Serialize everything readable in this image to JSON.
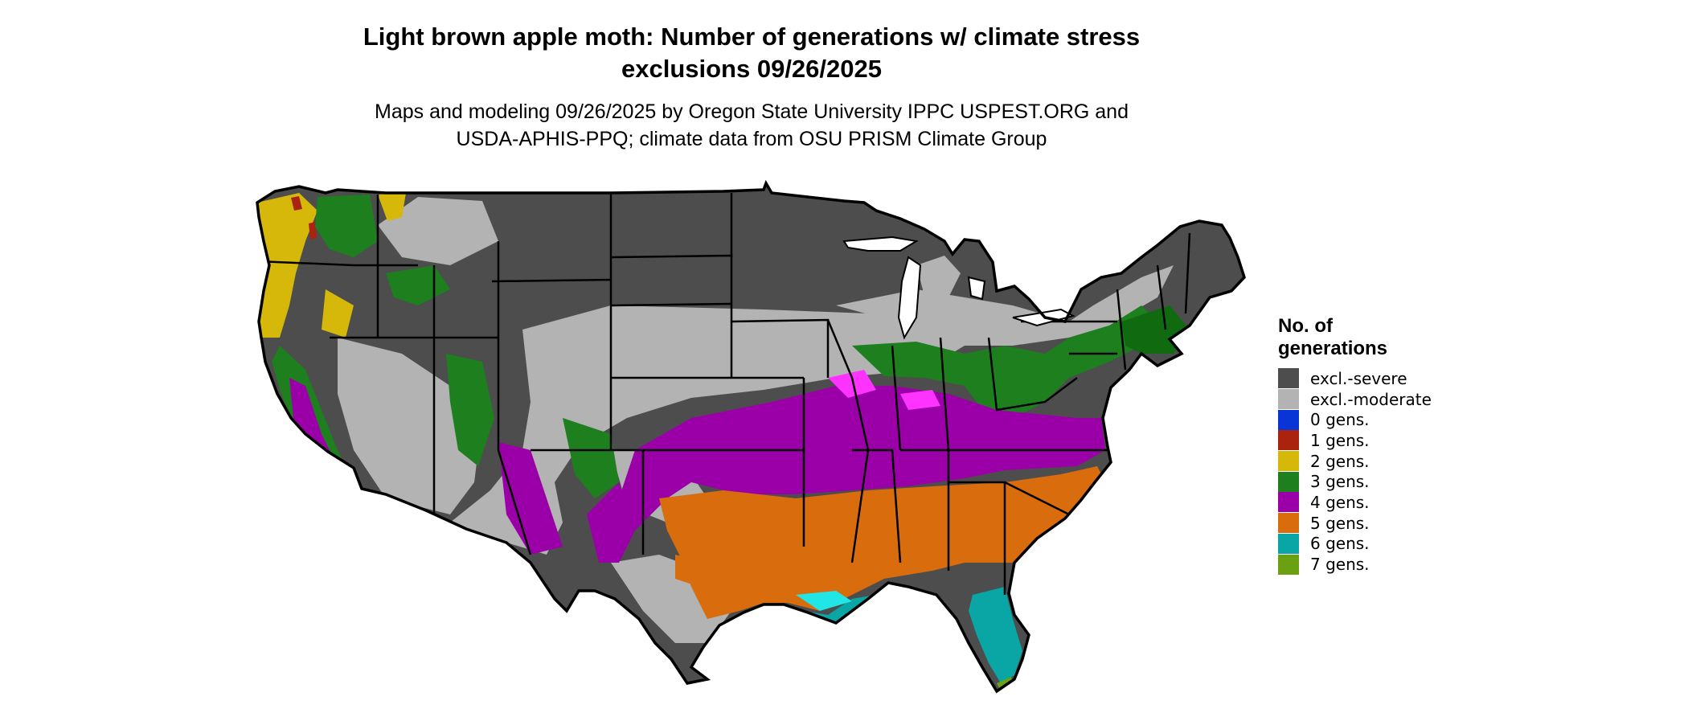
{
  "map": {
    "title_lines": [
      "Light brown apple moth: Number of generations w/ climate stress",
      "exclusions 09/26/2025"
    ],
    "subtitle_lines": [
      "Maps and modeling 09/26/2025 by Oregon State University IPPC USPEST.ORG and",
      "USDA-APHIS-PPQ; climate data from OSU PRISM Climate Group"
    ],
    "region": "Contiguous United States",
    "legend": {
      "title_lines": [
        "No. of",
        "generations"
      ],
      "items": [
        {
          "label": "excl.-severe",
          "color": "#4d4d4d"
        },
        {
          "label": "excl.-moderate",
          "color": "#b3b3b3"
        },
        {
          "label": "0 gens.",
          "color": "#0a35d6"
        },
        {
          "label": "1 gens.",
          "color": "#a9230f"
        },
        {
          "label": "2 gens.",
          "color": "#d6b80a"
        },
        {
          "label": "3 gens.",
          "color": "#1e7f1e"
        },
        {
          "label": "4 gens.",
          "color": "#9b00a8"
        },
        {
          "label": "5 gens.",
          "color": "#d96c0c"
        },
        {
          "label": "6 gens.",
          "color": "#0aa5a5"
        },
        {
          "label": "7 gens.",
          "color": "#6aa012"
        }
      ]
    },
    "extra_colors": {
      "highlight_magenta": "#ff33ff",
      "highlight_cyan": "#22e6e6",
      "dark_green": "#106b10"
    }
  }
}
